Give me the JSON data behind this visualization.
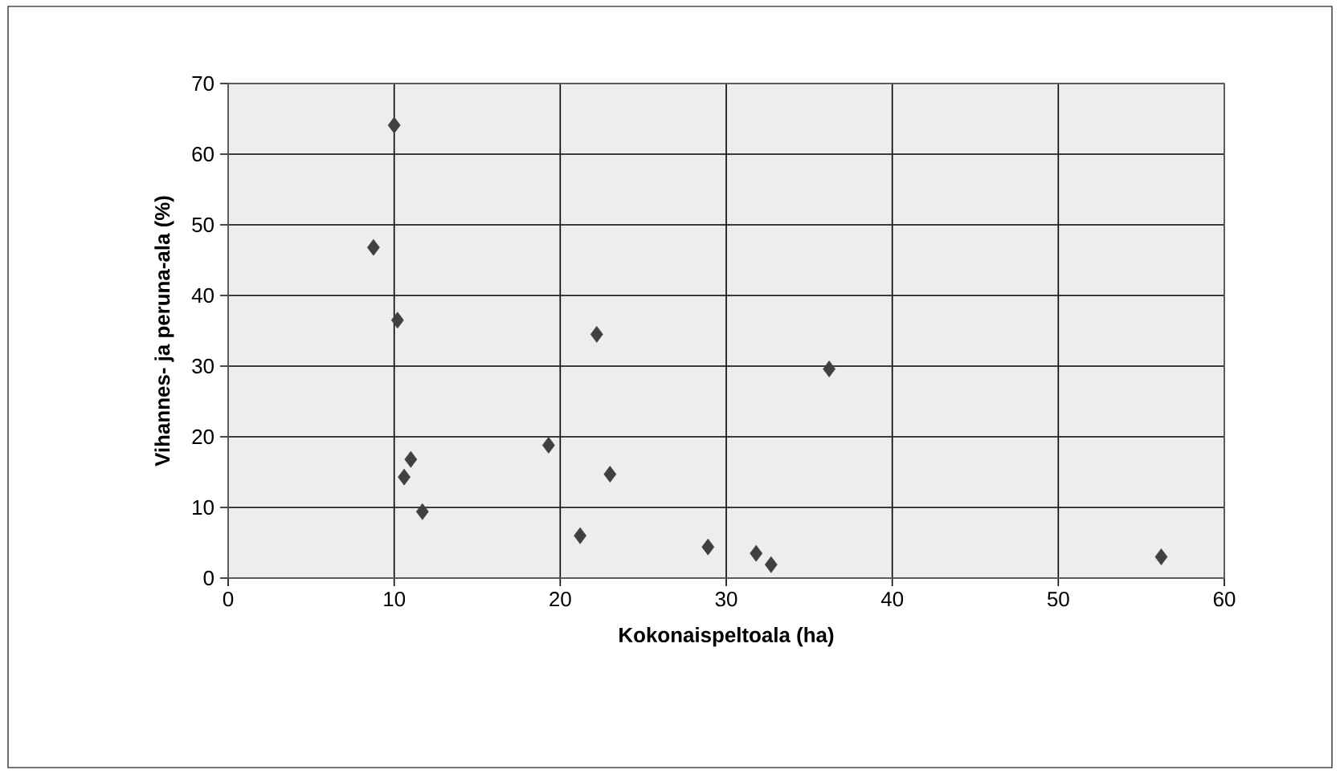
{
  "chart_data": {
    "type": "scatter",
    "xlabel": "Kokonaispeltoala (ha)",
    "ylabel": "Vihannes- ja peruna-ala (%)",
    "x": [
      10.0,
      8.75,
      10.2,
      22.2,
      36.2,
      19.3,
      11.0,
      10.6,
      23.0,
      11.7,
      21.2,
      28.9,
      31.8,
      32.7,
      56.2
    ],
    "values": [
      64.1,
      46.8,
      36.5,
      34.5,
      29.6,
      18.8,
      16.8,
      14.3,
      14.7,
      9.4,
      6.0,
      4.4,
      3.5,
      1.9,
      3.0
    ],
    "color": "#404040",
    "marker": "diamond",
    "grid": true,
    "xlim": [
      0,
      60
    ],
    "xticks": [
      0,
      10,
      20,
      30,
      40,
      50,
      60
    ],
    "ylim": [
      0,
      70
    ],
    "yticks": [
      0,
      10,
      20,
      30,
      40,
      50,
      60,
      70
    ]
  }
}
